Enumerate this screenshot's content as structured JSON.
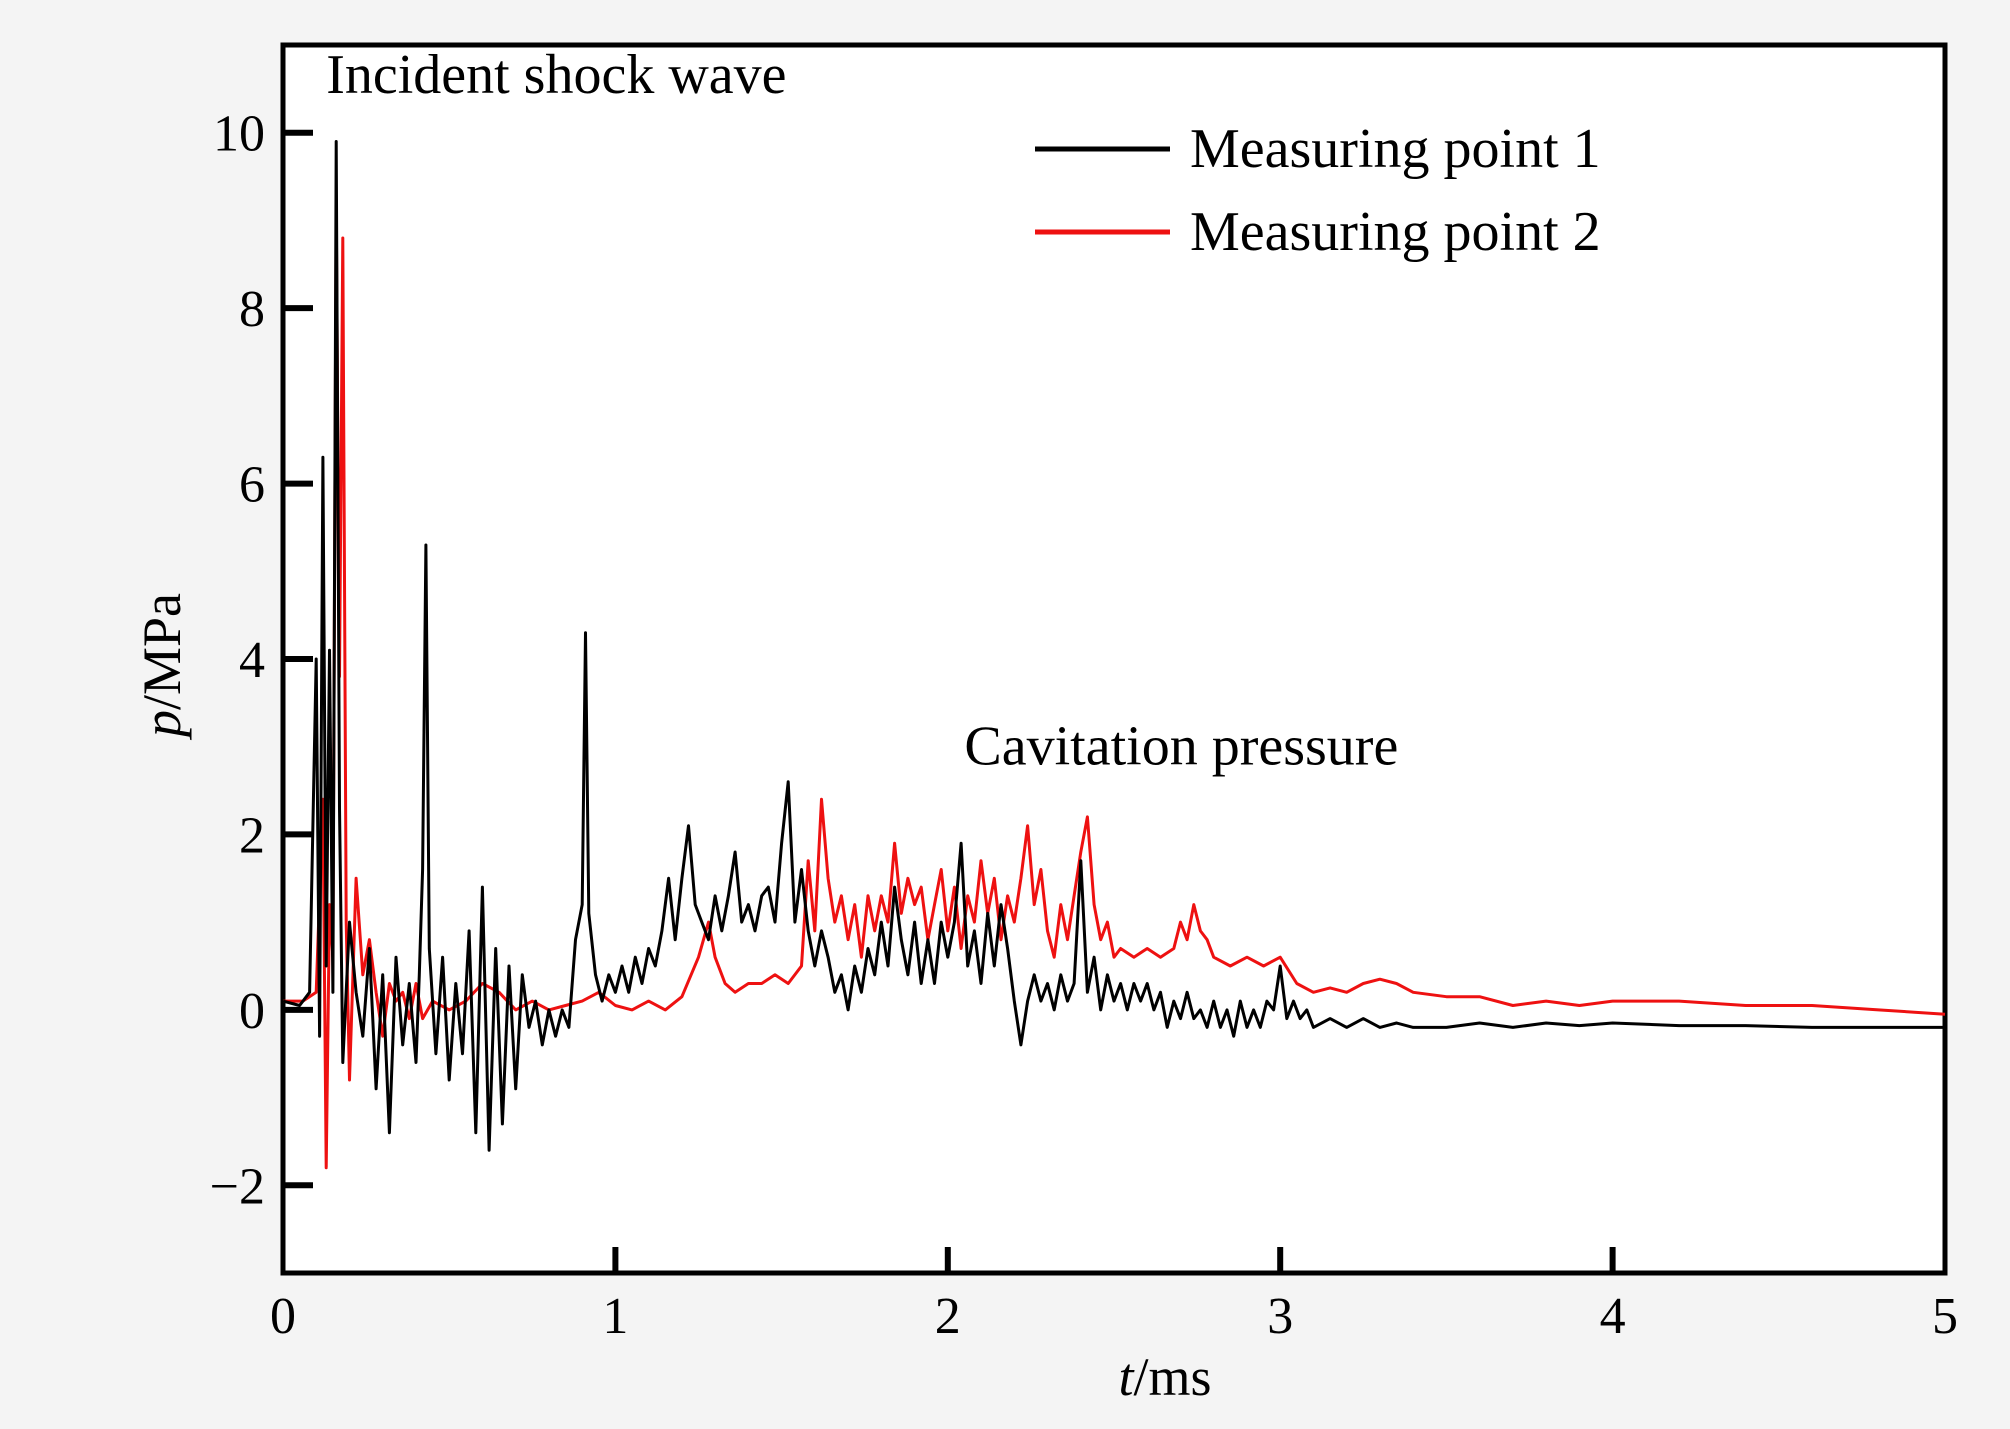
{
  "chart_data": {
    "type": "line",
    "xlabel": {
      "italic": "t",
      "rest": "/ms"
    },
    "ylabel": {
      "italic": "p",
      "rest": "/MPa"
    },
    "xlim": [
      0,
      5
    ],
    "ylim": [
      -3,
      11
    ],
    "xticks": [
      0,
      1,
      2,
      3,
      4,
      5
    ],
    "xtick_labels": [
      "0",
      "1",
      "2",
      "3",
      "4",
      "5"
    ],
    "yticks": [
      -2,
      0,
      2,
      4,
      6,
      8,
      10
    ],
    "ytick_labels": [
      "−2",
      "0",
      "2",
      "4",
      "6",
      "8",
      "10"
    ],
    "grid": false,
    "legend_position": "top-right",
    "annotations": [
      {
        "text": "Incident shock wave",
        "x": 0.13,
        "y": 10.45
      },
      {
        "text": "Cavitation pressure",
        "x": 2.05,
        "y": 2.8
      }
    ],
    "series": [
      {
        "name": "Measuring point 1",
        "color": "#000000",
        "points": [
          [
            0.0,
            0.1
          ],
          [
            0.05,
            0.05
          ],
          [
            0.08,
            0.2
          ],
          [
            0.1,
            4.0
          ],
          [
            0.11,
            -0.3
          ],
          [
            0.12,
            6.3
          ],
          [
            0.13,
            0.5
          ],
          [
            0.14,
            4.1
          ],
          [
            0.15,
            0.2
          ],
          [
            0.16,
            9.9
          ],
          [
            0.17,
            2.3
          ],
          [
            0.18,
            -0.6
          ],
          [
            0.2,
            1.0
          ],
          [
            0.22,
            0.2
          ],
          [
            0.24,
            -0.3
          ],
          [
            0.26,
            0.7
          ],
          [
            0.28,
            -0.9
          ],
          [
            0.3,
            0.4
          ],
          [
            0.32,
            -1.4
          ],
          [
            0.34,
            0.6
          ],
          [
            0.36,
            -0.4
          ],
          [
            0.38,
            0.3
          ],
          [
            0.4,
            -0.6
          ],
          [
            0.41,
            0.4
          ],
          [
            0.42,
            1.6
          ],
          [
            0.43,
            5.3
          ],
          [
            0.44,
            0.7
          ],
          [
            0.46,
            -0.5
          ],
          [
            0.48,
            0.6
          ],
          [
            0.5,
            -0.8
          ],
          [
            0.52,
            0.3
          ],
          [
            0.54,
            -0.5
          ],
          [
            0.56,
            0.9
          ],
          [
            0.58,
            -1.4
          ],
          [
            0.6,
            1.4
          ],
          [
            0.62,
            -1.6
          ],
          [
            0.64,
            0.7
          ],
          [
            0.66,
            -1.3
          ],
          [
            0.68,
            0.5
          ],
          [
            0.7,
            -0.9
          ],
          [
            0.72,
            0.4
          ],
          [
            0.74,
            -0.2
          ],
          [
            0.76,
            0.1
          ],
          [
            0.78,
            -0.4
          ],
          [
            0.8,
            0.0
          ],
          [
            0.82,
            -0.3
          ],
          [
            0.84,
            0.0
          ],
          [
            0.86,
            -0.2
          ],
          [
            0.88,
            0.8
          ],
          [
            0.9,
            1.2
          ],
          [
            0.91,
            4.3
          ],
          [
            0.92,
            1.1
          ],
          [
            0.94,
            0.4
          ],
          [
            0.96,
            0.1
          ],
          [
            0.98,
            0.4
          ],
          [
            1.0,
            0.2
          ],
          [
            1.02,
            0.5
          ],
          [
            1.04,
            0.2
          ],
          [
            1.06,
            0.6
          ],
          [
            1.08,
            0.3
          ],
          [
            1.1,
            0.7
          ],
          [
            1.12,
            0.5
          ],
          [
            1.14,
            0.9
          ],
          [
            1.16,
            1.5
          ],
          [
            1.18,
            0.8
          ],
          [
            1.2,
            1.5
          ],
          [
            1.22,
            2.1
          ],
          [
            1.24,
            1.2
          ],
          [
            1.26,
            1.0
          ],
          [
            1.28,
            0.8
          ],
          [
            1.3,
            1.3
          ],
          [
            1.32,
            0.9
          ],
          [
            1.34,
            1.3
          ],
          [
            1.36,
            1.8
          ],
          [
            1.38,
            1.0
          ],
          [
            1.4,
            1.2
          ],
          [
            1.42,
            0.9
          ],
          [
            1.44,
            1.3
          ],
          [
            1.46,
            1.4
          ],
          [
            1.48,
            1.0
          ],
          [
            1.5,
            1.9
          ],
          [
            1.52,
            2.6
          ],
          [
            1.54,
            1.0
          ],
          [
            1.56,
            1.6
          ],
          [
            1.58,
            0.9
          ],
          [
            1.6,
            0.5
          ],
          [
            1.62,
            0.9
          ],
          [
            1.64,
            0.6
          ],
          [
            1.66,
            0.2
          ],
          [
            1.68,
            0.4
          ],
          [
            1.7,
            0.0
          ],
          [
            1.72,
            0.5
          ],
          [
            1.74,
            0.2
          ],
          [
            1.76,
            0.7
          ],
          [
            1.78,
            0.4
          ],
          [
            1.8,
            1.0
          ],
          [
            1.82,
            0.5
          ],
          [
            1.84,
            1.4
          ],
          [
            1.86,
            0.8
          ],
          [
            1.88,
            0.4
          ],
          [
            1.9,
            1.0
          ],
          [
            1.92,
            0.3
          ],
          [
            1.94,
            0.8
          ],
          [
            1.96,
            0.3
          ],
          [
            1.98,
            1.0
          ],
          [
            2.0,
            0.6
          ],
          [
            2.02,
            1.0
          ],
          [
            2.04,
            1.9
          ],
          [
            2.06,
            0.5
          ],
          [
            2.08,
            0.9
          ],
          [
            2.1,
            0.3
          ],
          [
            2.12,
            1.1
          ],
          [
            2.14,
            0.5
          ],
          [
            2.16,
            1.2
          ],
          [
            2.18,
            0.7
          ],
          [
            2.2,
            0.1
          ],
          [
            2.22,
            -0.4
          ],
          [
            2.24,
            0.1
          ],
          [
            2.26,
            0.4
          ],
          [
            2.28,
            0.1
          ],
          [
            2.3,
            0.3
          ],
          [
            2.32,
            0.0
          ],
          [
            2.34,
            0.4
          ],
          [
            2.36,
            0.1
          ],
          [
            2.38,
            0.3
          ],
          [
            2.4,
            1.7
          ],
          [
            2.42,
            0.2
          ],
          [
            2.44,
            0.6
          ],
          [
            2.46,
            0.0
          ],
          [
            2.48,
            0.4
          ],
          [
            2.5,
            0.1
          ],
          [
            2.52,
            0.3
          ],
          [
            2.54,
            0.0
          ],
          [
            2.56,
            0.3
          ],
          [
            2.58,
            0.1
          ],
          [
            2.6,
            0.3
          ],
          [
            2.62,
            0.0
          ],
          [
            2.64,
            0.2
          ],
          [
            2.66,
            -0.2
          ],
          [
            2.68,
            0.1
          ],
          [
            2.7,
            -0.1
          ],
          [
            2.72,
            0.2
          ],
          [
            2.74,
            -0.1
          ],
          [
            2.76,
            0.0
          ],
          [
            2.78,
            -0.2
          ],
          [
            2.8,
            0.1
          ],
          [
            2.82,
            -0.2
          ],
          [
            2.84,
            0.0
          ],
          [
            2.86,
            -0.3
          ],
          [
            2.88,
            0.1
          ],
          [
            2.9,
            -0.2
          ],
          [
            2.92,
            0.0
          ],
          [
            2.94,
            -0.2
          ],
          [
            2.96,
            0.1
          ],
          [
            2.98,
            0.0
          ],
          [
            3.0,
            0.5
          ],
          [
            3.02,
            -0.1
          ],
          [
            3.04,
            0.1
          ],
          [
            3.06,
            -0.1
          ],
          [
            3.08,
            0.0
          ],
          [
            3.1,
            -0.2
          ],
          [
            3.15,
            -0.1
          ],
          [
            3.2,
            -0.2
          ],
          [
            3.25,
            -0.1
          ],
          [
            3.3,
            -0.2
          ],
          [
            3.35,
            -0.15
          ],
          [
            3.4,
            -0.2
          ],
          [
            3.5,
            -0.2
          ],
          [
            3.6,
            -0.15
          ],
          [
            3.7,
            -0.2
          ],
          [
            3.8,
            -0.15
          ],
          [
            3.9,
            -0.18
          ],
          [
            4.0,
            -0.15
          ],
          [
            4.2,
            -0.18
          ],
          [
            4.4,
            -0.18
          ],
          [
            4.6,
            -0.2
          ],
          [
            4.8,
            -0.2
          ],
          [
            5.0,
            -0.2
          ]
        ]
      },
      {
        "name": "Measuring point 2",
        "color": "#ee1111",
        "points": [
          [
            0.0,
            0.1
          ],
          [
            0.06,
            0.1
          ],
          [
            0.1,
            0.2
          ],
          [
            0.12,
            2.4
          ],
          [
            0.13,
            -1.8
          ],
          [
            0.14,
            1.2
          ],
          [
            0.15,
            0.6
          ],
          [
            0.16,
            9.2
          ],
          [
            0.17,
            3.8
          ],
          [
            0.18,
            8.8
          ],
          [
            0.19,
            1.0
          ],
          [
            0.2,
            -0.8
          ],
          [
            0.22,
            1.5
          ],
          [
            0.24,
            0.4
          ],
          [
            0.26,
            0.8
          ],
          [
            0.28,
            0.2
          ],
          [
            0.3,
            -0.3
          ],
          [
            0.32,
            0.3
          ],
          [
            0.34,
            0.1
          ],
          [
            0.36,
            0.2
          ],
          [
            0.38,
            -0.1
          ],
          [
            0.4,
            0.3
          ],
          [
            0.42,
            -0.1
          ],
          [
            0.45,
            0.1
          ],
          [
            0.5,
            0.0
          ],
          [
            0.55,
            0.1
          ],
          [
            0.6,
            0.3
          ],
          [
            0.65,
            0.2
          ],
          [
            0.7,
            0.0
          ],
          [
            0.75,
            0.1
          ],
          [
            0.8,
            0.0
          ],
          [
            0.85,
            0.05
          ],
          [
            0.9,
            0.1
          ],
          [
            0.95,
            0.2
          ],
          [
            1.0,
            0.05
          ],
          [
            1.05,
            0.0
          ],
          [
            1.1,
            0.1
          ],
          [
            1.15,
            0.0
          ],
          [
            1.2,
            0.15
          ],
          [
            1.25,
            0.6
          ],
          [
            1.28,
            1.0
          ],
          [
            1.3,
            0.6
          ],
          [
            1.33,
            0.3
          ],
          [
            1.36,
            0.2
          ],
          [
            1.4,
            0.3
          ],
          [
            1.44,
            0.3
          ],
          [
            1.48,
            0.4
          ],
          [
            1.52,
            0.3
          ],
          [
            1.56,
            0.5
          ],
          [
            1.58,
            1.7
          ],
          [
            1.6,
            0.9
          ],
          [
            1.62,
            2.4
          ],
          [
            1.64,
            1.5
          ],
          [
            1.66,
            1.0
          ],
          [
            1.68,
            1.3
          ],
          [
            1.7,
            0.8
          ],
          [
            1.72,
            1.2
          ],
          [
            1.74,
            0.6
          ],
          [
            1.76,
            1.3
          ],
          [
            1.78,
            0.9
          ],
          [
            1.8,
            1.3
          ],
          [
            1.82,
            1.0
          ],
          [
            1.84,
            1.9
          ],
          [
            1.86,
            1.1
          ],
          [
            1.88,
            1.5
          ],
          [
            1.9,
            1.2
          ],
          [
            1.92,
            1.4
          ],
          [
            1.94,
            0.8
          ],
          [
            1.96,
            1.2
          ],
          [
            1.98,
            1.6
          ],
          [
            2.0,
            0.9
          ],
          [
            2.02,
            1.4
          ],
          [
            2.04,
            0.7
          ],
          [
            2.06,
            1.3
          ],
          [
            2.08,
            1.0
          ],
          [
            2.1,
            1.7
          ],
          [
            2.12,
            1.1
          ],
          [
            2.14,
            1.5
          ],
          [
            2.16,
            0.8
          ],
          [
            2.18,
            1.3
          ],
          [
            2.2,
            1.0
          ],
          [
            2.22,
            1.5
          ],
          [
            2.24,
            2.1
          ],
          [
            2.26,
            1.2
          ],
          [
            2.28,
            1.6
          ],
          [
            2.3,
            0.9
          ],
          [
            2.32,
            0.6
          ],
          [
            2.34,
            1.2
          ],
          [
            2.36,
            0.8
          ],
          [
            2.38,
            1.3
          ],
          [
            2.4,
            1.8
          ],
          [
            2.42,
            2.2
          ],
          [
            2.44,
            1.2
          ],
          [
            2.46,
            0.8
          ],
          [
            2.48,
            1.0
          ],
          [
            2.5,
            0.6
          ],
          [
            2.52,
            0.7
          ],
          [
            2.56,
            0.6
          ],
          [
            2.6,
            0.7
          ],
          [
            2.64,
            0.6
          ],
          [
            2.68,
            0.7
          ],
          [
            2.7,
            1.0
          ],
          [
            2.72,
            0.8
          ],
          [
            2.74,
            1.2
          ],
          [
            2.76,
            0.9
          ],
          [
            2.78,
            0.8
          ],
          [
            2.8,
            0.6
          ],
          [
            2.85,
            0.5
          ],
          [
            2.9,
            0.6
          ],
          [
            2.95,
            0.5
          ],
          [
            3.0,
            0.6
          ],
          [
            3.05,
            0.3
          ],
          [
            3.1,
            0.2
          ],
          [
            3.15,
            0.25
          ],
          [
            3.2,
            0.2
          ],
          [
            3.25,
            0.3
          ],
          [
            3.3,
            0.35
          ],
          [
            3.35,
            0.3
          ],
          [
            3.4,
            0.2
          ],
          [
            3.5,
            0.15
          ],
          [
            3.6,
            0.15
          ],
          [
            3.7,
            0.05
          ],
          [
            3.8,
            0.1
          ],
          [
            3.9,
            0.05
          ],
          [
            4.0,
            0.1
          ],
          [
            4.2,
            0.1
          ],
          [
            4.4,
            0.05
          ],
          [
            4.6,
            0.05
          ],
          [
            4.8,
            0.0
          ],
          [
            5.0,
            -0.05
          ]
        ]
      }
    ]
  }
}
